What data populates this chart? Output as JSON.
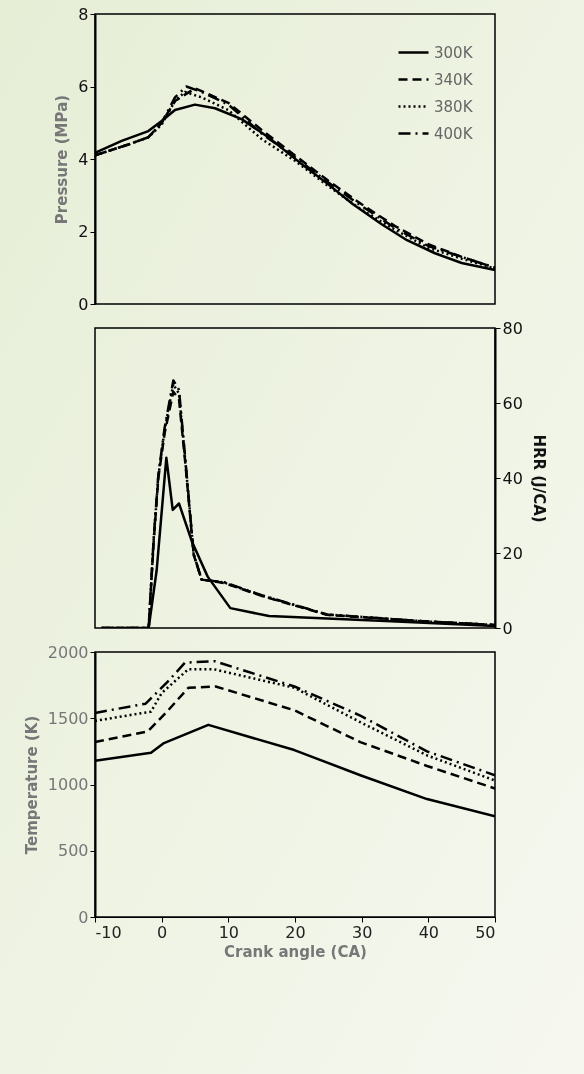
{
  "chart_data": [
    {
      "type": "line",
      "ylabel": "Pressure (MPa)",
      "xlim": [
        -10,
        50
      ],
      "ylim": [
        0,
        8
      ],
      "yticks": [
        0,
        2,
        4,
        6,
        8
      ],
      "tick_labels": "y",
      "legend": "top right",
      "grid": false,
      "series": [
        {
          "name": "300K",
          "color": "#000000",
          "line_style": "solid",
          "x": [
            -10,
            -6,
            -2,
            0,
            2,
            5,
            8,
            12,
            16,
            20.6,
            25,
            28.7,
            33,
            36.8,
            41,
            45,
            50
          ],
          "values": [
            4.17,
            4.5,
            4.77,
            5.05,
            5.35,
            5.5,
            5.4,
            5.1,
            4.6,
            3.92,
            3.3,
            2.75,
            2.2,
            1.76,
            1.4,
            1.13,
            0.94
          ]
        },
        {
          "name": "340K",
          "color": "#000000",
          "line_style": "dashed",
          "x": [
            -10,
            -5,
            -2,
            0,
            2,
            5,
            10,
            15,
            20,
            25,
            30,
            35,
            40,
            45,
            50
          ],
          "values": [
            4.1,
            4.4,
            4.6,
            5.0,
            5.6,
            5.95,
            5.55,
            4.8,
            4.1,
            3.4,
            2.75,
            2.15,
            1.65,
            1.3,
            1.0
          ]
        },
        {
          "name": "380K",
          "color": "#000000",
          "line_style": "dotted",
          "x": [
            -10,
            -5,
            -2,
            0,
            2,
            3.5,
            6,
            10,
            15,
            20,
            25,
            30,
            35,
            40,
            45,
            50
          ],
          "values": [
            4.1,
            4.4,
            4.6,
            4.95,
            5.6,
            5.85,
            5.7,
            5.35,
            4.55,
            3.95,
            3.25,
            2.6,
            2.05,
            1.55,
            1.25,
            0.98
          ]
        },
        {
          "name": "400K",
          "color": "#000000",
          "line_style": "dashdot",
          "x": [
            -10,
            -5,
            -2,
            0,
            2,
            3.7,
            6,
            10,
            15,
            20,
            25,
            30,
            35,
            40,
            45,
            50
          ],
          "values": [
            4.1,
            4.4,
            4.6,
            5.0,
            5.7,
            6.0,
            5.85,
            5.5,
            4.7,
            4.05,
            3.35,
            2.7,
            2.1,
            1.6,
            1.3,
            1.0
          ]
        }
      ]
    },
    {
      "type": "line",
      "y2label": "HRR (J/CA)",
      "xlim": [
        -10,
        50
      ],
      "y2lim": [
        0,
        80
      ],
      "y2ticks": [
        0,
        20,
        40,
        60,
        80
      ],
      "tick_labels": "y2",
      "grid": false,
      "series": [
        {
          "color": "#000000",
          "line_style": "solid",
          "axis": "y2",
          "x": [
            -9,
            -1.95,
            -0.75,
            0.7,
            1.66,
            2.6,
            4.55,
            6.9,
            10.3,
            16.1,
            34.4,
            50
          ],
          "values": [
            0,
            0,
            15.4,
            45.4,
            31.5,
            33.2,
            23,
            13.7,
            5.3,
            3.2,
            1.8,
            0.5
          ]
        },
        {
          "color": "#000000",
          "line_style": "dashed",
          "axis": "y2",
          "x": [
            -9,
            -1.95,
            -1.2,
            -0.5,
            0.45,
            1.75,
            2.6,
            3.6,
            4.8,
            6.0,
            9.4,
            15.1,
            24.8,
            39.2,
            50
          ],
          "values": [
            0,
            0,
            23,
            40,
            52,
            63,
            61,
            43,
            19.5,
            12.9,
            12,
            8.5,
            3.5,
            1.8,
            0.8
          ]
        },
        {
          "color": "#000000",
          "line_style": "dotted",
          "axis": "y2",
          "x": [
            -9,
            -1.95,
            -1.2,
            -0.5,
            0.45,
            1.75,
            2.6,
            3.6,
            4.8,
            6.0,
            9.4,
            15.1,
            24.8,
            39.2,
            50
          ],
          "values": [
            0,
            0,
            23.5,
            40.5,
            53,
            65,
            62.5,
            43.5,
            19.6,
            12.9,
            12.1,
            8.6,
            3.6,
            1.8,
            0.8
          ]
        },
        {
          "color": "#000000",
          "line_style": "dashdot",
          "axis": "y2",
          "x": [
            -9,
            -1.95,
            -1.2,
            -0.5,
            0.45,
            1.75,
            2.6,
            3.6,
            4.8,
            6.0,
            9.4,
            15.1,
            24.8,
            39.2,
            50
          ],
          "values": [
            0,
            0,
            23.8,
            40.8,
            53.4,
            66,
            63.5,
            44,
            19.7,
            12.9,
            12.2,
            8.7,
            3.6,
            1.8,
            0.8
          ]
        }
      ]
    },
    {
      "type": "line",
      "xlabel": "Crank angle (CA)",
      "ylabel": "Temperature (K)",
      "xlim": [
        -10,
        50
      ],
      "xticks": [
        -10,
        0,
        10,
        20,
        30,
        40,
        50
      ],
      "ylim": [
        0,
        2000
      ],
      "yticks": [
        0,
        500,
        1000,
        1500,
        2000
      ],
      "grid": false,
      "series": [
        {
          "color": "#000000",
          "line_style": "solid",
          "x": [
            -10,
            -1.6,
            0.25,
            7,
            19.9,
            29.8,
            39.8,
            50
          ],
          "values": [
            1180,
            1240,
            1310,
            1450,
            1260,
            1070,
            890,
            760
          ]
        },
        {
          "color": "#000000",
          "line_style": "dashed",
          "x": [
            -10,
            -2.1,
            0.8,
            4,
            8.1,
            19.9,
            29.8,
            39.8,
            50
          ],
          "values": [
            1320,
            1400,
            1550,
            1730,
            1740,
            1560,
            1320,
            1140,
            970
          ]
        },
        {
          "color": "#000000",
          "line_style": "dotted",
          "x": [
            -10,
            -1.6,
            0,
            4,
            7.8,
            19.9,
            29.8,
            39.8,
            50
          ],
          "values": [
            1480,
            1550,
            1690,
            1870,
            1870,
            1730,
            1470,
            1220,
            1030
          ]
        },
        {
          "color": "#000000",
          "line_style": "dashdot",
          "x": [
            -10,
            -2.4,
            0.8,
            3.5,
            8,
            19.9,
            29.8,
            39.8,
            50
          ],
          "values": [
            1540,
            1610,
            1770,
            1920,
            1930,
            1740,
            1520,
            1250,
            1070
          ]
        }
      ]
    }
  ]
}
